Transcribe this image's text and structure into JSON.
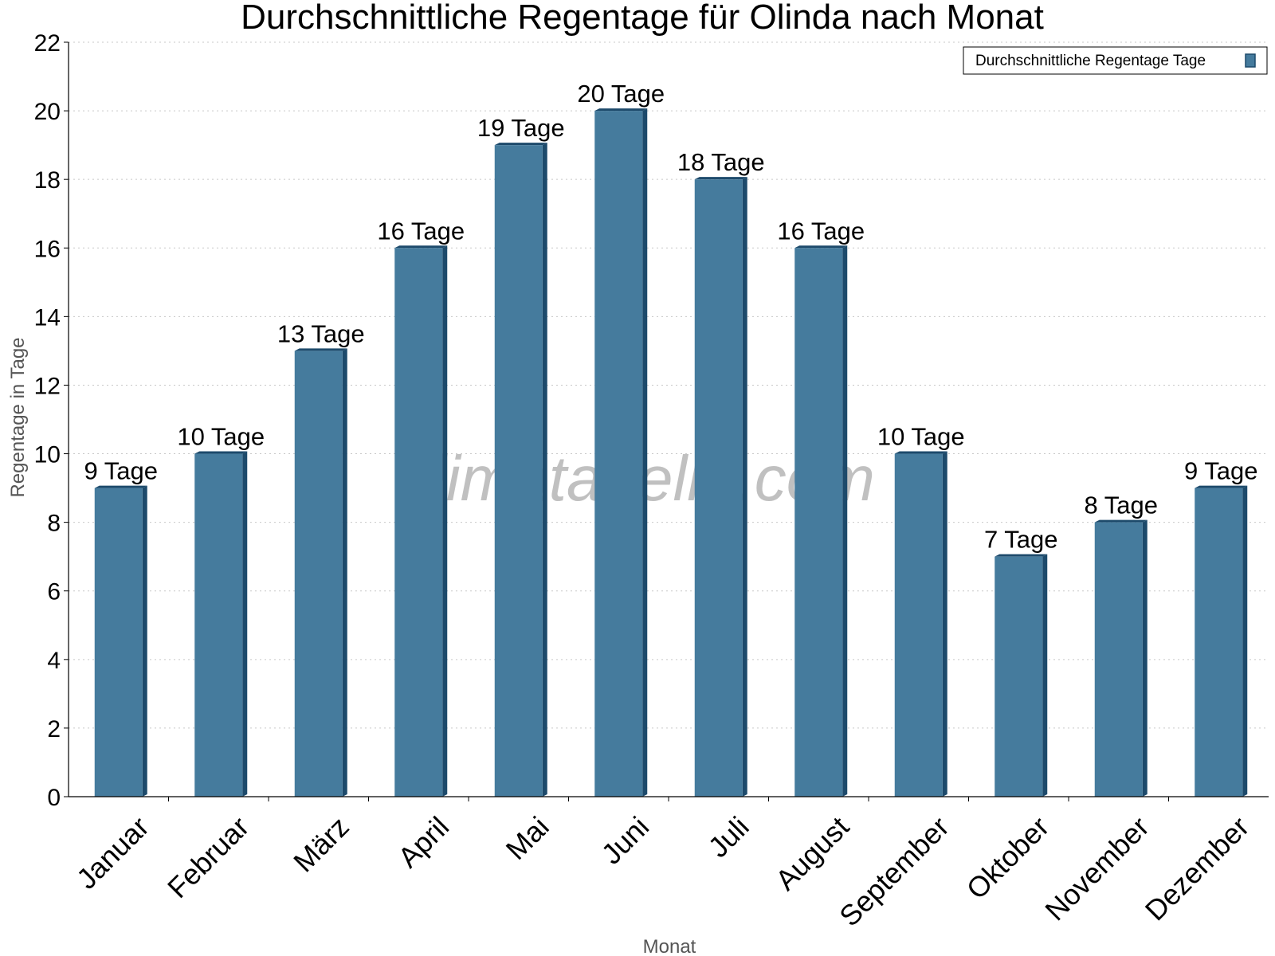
{
  "chart_data": {
    "type": "bar",
    "title": "Durchschnittliche Regentage für Olinda nach Monat",
    "xlabel": "Monat",
    "ylabel": "Regentage in Tage",
    "ylim": [
      0,
      22
    ],
    "yticks": [
      0,
      2,
      4,
      6,
      8,
      10,
      12,
      14,
      16,
      18,
      20,
      22
    ],
    "grid": "horizontal dotted",
    "legend": {
      "placement": "top-right",
      "entries": [
        "Durchschnittliche Regentage Tage"
      ]
    },
    "watermark": "klimatabelle.com",
    "categories": [
      "Januar",
      "Februar",
      "März",
      "April",
      "Mai",
      "Juni",
      "Juli",
      "August",
      "September",
      "Oktober",
      "November",
      "Dezember"
    ],
    "series": [
      {
        "name": "Durchschnittliche Regentage Tage",
        "values": [
          9,
          10,
          13,
          16,
          19,
          20,
          18,
          16,
          10,
          7,
          8,
          9
        ],
        "data_labels": [
          "9 Tage",
          "10 Tage",
          "13 Tage",
          "16 Tage",
          "19 Tage",
          "20 Tage",
          "18 Tage",
          "16 Tage",
          "10 Tage",
          "7 Tage",
          "8 Tage",
          "9 Tage"
        ],
        "color": "#457b9d"
      }
    ]
  },
  "colors": {
    "bar": "#457b9d",
    "bar_side": "#1d4a6b",
    "grid": "#c8c8c8",
    "axis_label": "#555555",
    "watermark": "#8c8c8c"
  }
}
